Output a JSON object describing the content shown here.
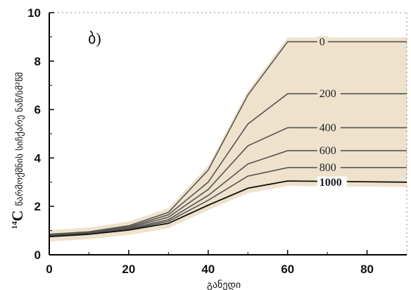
{
  "chart_data": {
    "type": "line",
    "panel_label": "ბ)",
    "xlabel": "განედი",
    "ylabel": {
      "superscript": "14",
      "symbol": "C",
      "text": "წარმოქმნის სიჩქარე ნაწ/სმ²წმ"
    },
    "xlim": [
      0,
      90
    ],
    "ylim": [
      0,
      10
    ],
    "x_ticks": [
      "0",
      "20",
      "40",
      "60",
      "80"
    ],
    "y_ticks": [
      "0",
      "2",
      "4",
      "6",
      "8",
      "10"
    ],
    "x": [
      0,
      10,
      20,
      30,
      40,
      50,
      60,
      90
    ],
    "series": [
      {
        "name": "0",
        "values": [
          0.85,
          0.95,
          1.2,
          1.75,
          3.5,
          6.6,
          8.8,
          8.8
        ]
      },
      {
        "name": "200",
        "values": [
          0.83,
          0.93,
          1.15,
          1.65,
          3.0,
          5.4,
          6.65,
          6.65
        ]
      },
      {
        "name": "400",
        "values": [
          0.81,
          0.91,
          1.12,
          1.55,
          2.7,
          4.5,
          5.25,
          5.25
        ]
      },
      {
        "name": "600",
        "values": [
          0.79,
          0.89,
          1.08,
          1.45,
          2.45,
          3.75,
          4.3,
          4.3
        ]
      },
      {
        "name": "800",
        "values": [
          0.77,
          0.87,
          1.05,
          1.38,
          2.25,
          3.25,
          3.6,
          3.6
        ]
      },
      {
        "name": "1000",
        "values": [
          0.75,
          0.85,
          1.02,
          1.3,
          2.05,
          2.75,
          3.05,
          3.0
        ]
      }
    ],
    "band_color": "#eee2cc",
    "line_color": "#555555",
    "axis_color": "#000000",
    "grid": false
  }
}
